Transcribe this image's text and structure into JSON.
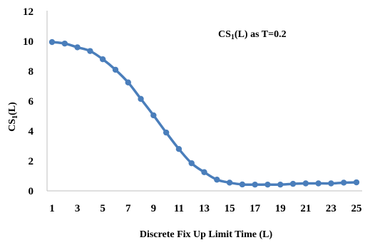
{
  "chart_data": {
    "type": "line",
    "title": "",
    "annotation": {
      "main": "CS",
      "sub": "1",
      "rest": "(L) as T=0.2"
    },
    "xlabel": "Discrete Fix Up Limit Time (L)",
    "ylabel": {
      "main": "CS",
      "sub": "1",
      "rest": "(L)"
    },
    "x_tick_labels": [
      "1",
      "3",
      "5",
      "7",
      "9",
      "11",
      "13",
      "15",
      "17",
      "19",
      "21",
      "23",
      "25"
    ],
    "y_tick_labels": [
      "0",
      "2",
      "4",
      "6",
      "8",
      "10",
      "12"
    ],
    "xlim": [
      1,
      25
    ],
    "ylim": [
      0,
      12
    ],
    "grid": false,
    "legend": "none",
    "series": [
      {
        "color": "#4a7ebb",
        "x": [
          1,
          2,
          3,
          4,
          5,
          6,
          7,
          8,
          9,
          10,
          11,
          12,
          13,
          14,
          15,
          16,
          17,
          18,
          19,
          20,
          21,
          22,
          23,
          24,
          25
        ],
        "y": [
          9.95,
          9.85,
          9.6,
          9.35,
          8.8,
          8.1,
          7.25,
          6.15,
          5.05,
          3.9,
          2.8,
          1.85,
          1.25,
          0.75,
          0.55,
          0.43,
          0.42,
          0.42,
          0.42,
          0.47,
          0.5,
          0.5,
          0.5,
          0.55,
          0.57
        ]
      }
    ]
  }
}
